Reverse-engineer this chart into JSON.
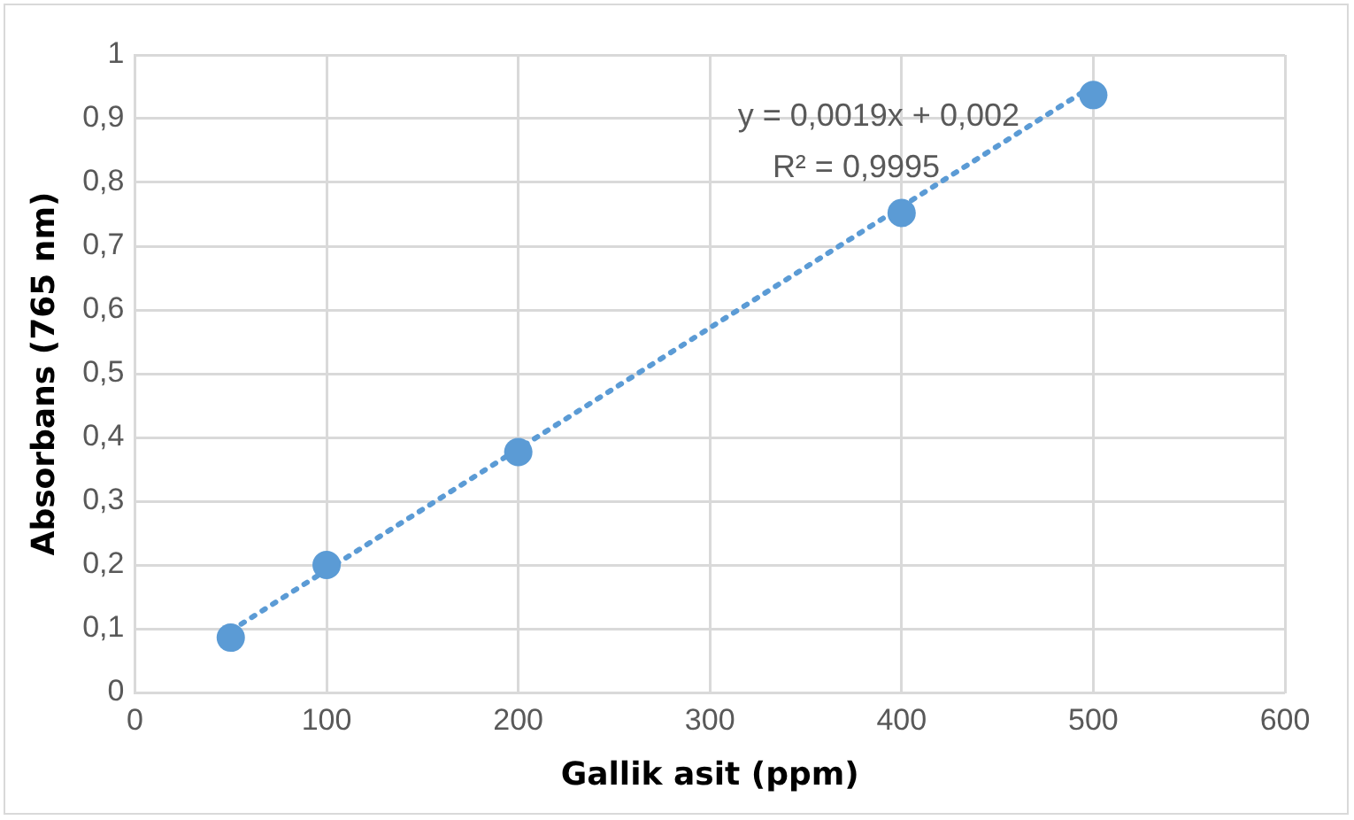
{
  "chart_data": {
    "type": "scatter",
    "xlabel": "Gallik asit (ppm)",
    "ylabel": "Absorbans (765 nm)",
    "series": [
      {
        "color": "#5b9bd5",
        "x": [
          50,
          100,
          200,
          400,
          500
        ],
        "values": [
          0.086,
          0.2,
          0.377,
          0.752,
          0.937
        ],
        "marker": "circle"
      },
      {
        "type": "line",
        "color": "#5b9bd5",
        "x": [
          50,
          500
        ],
        "values": [
          0.097,
          0.952
        ],
        "line_style": "dotted",
        "marker": "none"
      }
    ],
    "xlim": [
      0,
      600
    ],
    "xticks": [
      0,
      100,
      200,
      300,
      400,
      500,
      600
    ],
    "ylim": [
      0,
      1
    ],
    "yticks": [
      0,
      {
        "value": 0.1,
        "label": "0,1"
      },
      {
        "value": 0.2,
        "label": "0,2"
      },
      {
        "value": 0.3,
        "label": "0,3"
      },
      {
        "value": 0.4,
        "label": "0,4"
      },
      {
        "value": 0.5,
        "label": "0,5"
      },
      {
        "value": 0.6,
        "label": "0,6"
      },
      {
        "value": 0.7,
        "label": "0,7"
      },
      {
        "value": 0.8,
        "label": "0,8"
      },
      {
        "value": 0.9,
        "label": "0,9"
      },
      1
    ],
    "grid": true,
    "annotations": [
      "y = 0,0019x + 0,002",
      "R² = 0,9995"
    ]
  }
}
